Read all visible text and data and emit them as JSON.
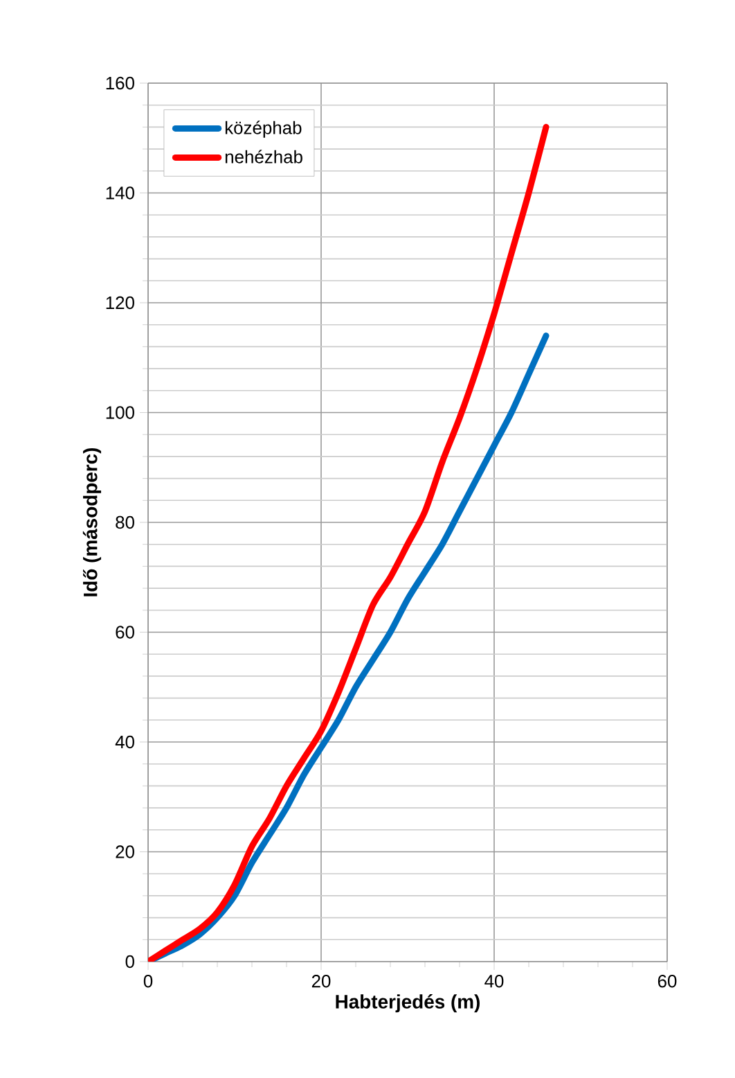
{
  "chart_data": {
    "type": "line",
    "xlabel": "Habterjedés (m)",
    "ylabel": "Idő (másodperc)",
    "xlim": [
      0,
      60
    ],
    "ylim": [
      0,
      160
    ],
    "xticks": [
      0,
      20,
      40,
      60
    ],
    "yticks": [
      0,
      20,
      40,
      60,
      80,
      100,
      120,
      140,
      160
    ],
    "grid": true,
    "legend": "top left",
    "marker": "none",
    "line_style": "solid",
    "x": [
      0,
      2,
      4,
      6,
      8,
      10,
      12,
      14,
      16,
      18,
      20,
      22,
      24,
      26,
      28,
      30,
      32,
      34,
      36,
      38,
      40,
      42,
      44,
      46
    ],
    "series": [
      {
        "name": "középhab",
        "color": "#0070c0",
        "values": [
          0,
          1.5,
          3,
          5,
          8,
          12,
          18,
          23,
          28,
          34,
          39,
          44,
          50,
          55,
          60,
          66,
          71,
          76,
          82,
          88,
          94,
          100,
          107,
          114
        ]
      },
      {
        "name": "nehézhab",
        "color": "#ff0000",
        "values": [
          0,
          2,
          4,
          6,
          9,
          14,
          21,
          26,
          32,
          37,
          42,
          49,
          57,
          65,
          70,
          76,
          82,
          91,
          99,
          108,
          118,
          129,
          140,
          152
        ]
      }
    ]
  }
}
